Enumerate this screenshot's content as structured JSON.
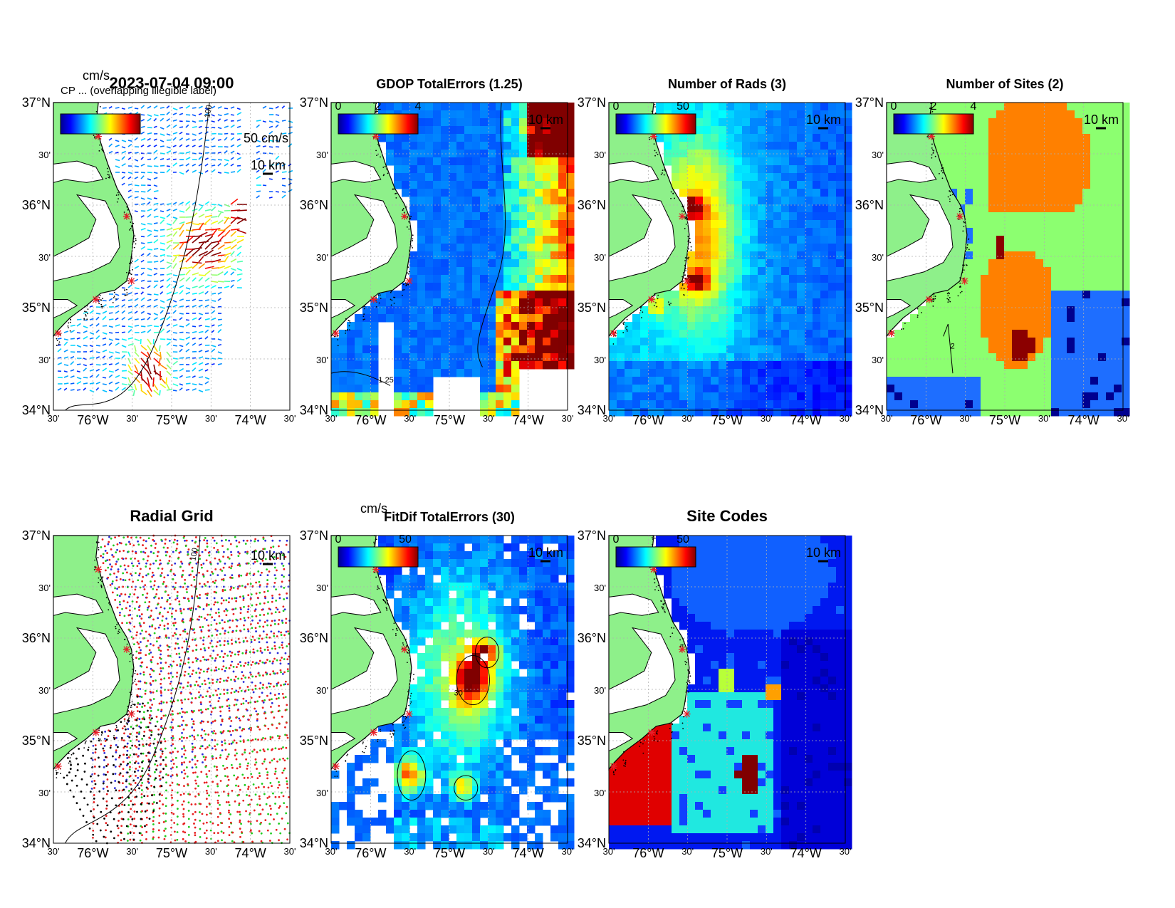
{
  "colors": {
    "land": "#8ef08a",
    "coast": "#000000",
    "site_marker": "#e8202a",
    "grid": "#b0b0b0",
    "frame": "#000000"
  },
  "axes": {
    "lat_labels": [
      "37°N",
      "30'",
      "36°N",
      "30'",
      "35°N",
      "30'",
      "34°N"
    ],
    "lon_labels": [
      "30'",
      "76°W",
      "30'",
      "75°W",
      "30'",
      "74°W",
      "30'"
    ],
    "lat_range": [
      34,
      37
    ],
    "lon_range": [
      -76.5,
      -73.5
    ]
  },
  "panels": [
    {
      "id": "current-vectors",
      "title": "2023-07-04 09:00",
      "cbar_unit": "cm/s",
      "cbar_ticks": [],
      "overlap_text": "CP ... (overlapping illegible label)",
      "vector_scale_label": "50 cm/s",
      "scalebar_label": "10 km",
      "isobath_label": "100",
      "colormap": "jet",
      "background": "white"
    },
    {
      "id": "gdop-total-errors",
      "title": "GDOP TotalErrors (1.25)",
      "cbar_unit": "",
      "cbar_ticks": [
        "0",
        "2",
        "4"
      ],
      "scalebar_label": "10 km",
      "contour_label": "1.25",
      "colormap": "jet",
      "background": "blue-field"
    },
    {
      "id": "number-of-rads",
      "title": "Number of Rads (3)",
      "cbar_unit": "",
      "cbar_ticks": [
        "0",
        "50"
      ],
      "scalebar_label": "10 km",
      "colormap": "jet",
      "background": "blue-field"
    },
    {
      "id": "number-of-sites",
      "title": "Number of Sites (2)",
      "cbar_unit": "",
      "cbar_ticks": [
        "0",
        "2",
        "4"
      ],
      "scalebar_label": "10 km",
      "contour_label": "2",
      "colormap": "jet",
      "background": "green-field"
    },
    {
      "id": "radial-grid",
      "title": "Radial Grid",
      "cbar_unit": "",
      "cbar_ticks": [],
      "scalebar_label": "10 km",
      "isobath_label": "100",
      "site_colors": [
        "#2b2bd8",
        "#e81f1f",
        "#1fcc1f",
        "#000000"
      ],
      "colormap": "none",
      "background": "white"
    },
    {
      "id": "fitdif-total-errors",
      "title": "FitDif TotalErrors (30)",
      "cbar_unit": "cm/s",
      "cbar_ticks": [
        "0",
        "50"
      ],
      "scalebar_label": "10 km",
      "contour_label": "30",
      "colormap": "jet",
      "background": "white"
    },
    {
      "id": "site-codes",
      "title": "Site Codes",
      "cbar_unit": "",
      "cbar_ticks": [
        "0",
        "50"
      ],
      "scalebar_label": "10 km",
      "colormap": "jet",
      "background": "blue-field"
    }
  ]
}
